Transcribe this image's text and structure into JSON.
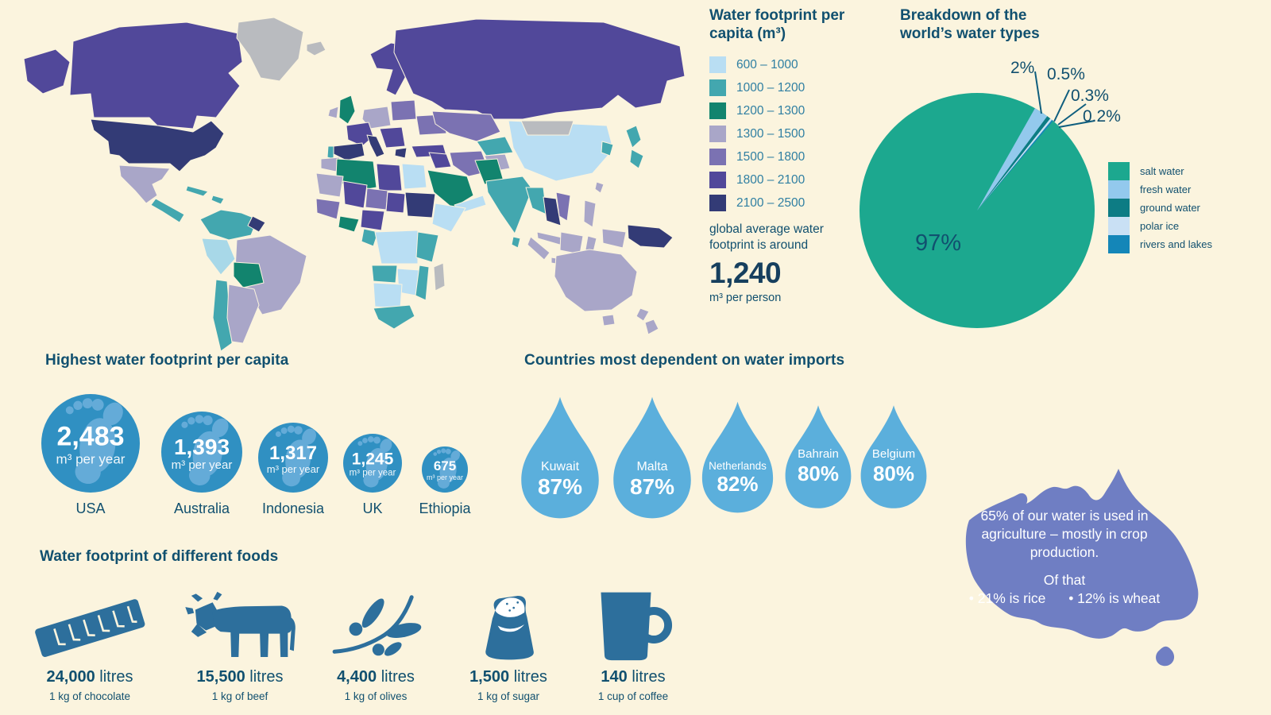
{
  "palette": {
    "background": "#FBF4DE",
    "ink": "#11506F",
    "legend_text": "#2F7FA2",
    "big_number": "#163F5E",
    "circle_fill": "#3090C2",
    "circle_footprint": "#64ABD8",
    "drop_fill": "#5BAFDC",
    "food_icon": "#2D6F9C",
    "australia_fill": "#6F7EC3",
    "leader_line": "#0F5E7E"
  },
  "chart_data": [
    {
      "type": "pie",
      "title": "Breakdown of the world’s water types",
      "start_angle_deg": 29.5,
      "legend_position": "right",
      "slices": [
        {
          "label": "salt water",
          "value": 97,
          "display": "97%",
          "color": "#1CA88F"
        },
        {
          "label": "fresh water",
          "value": 2,
          "display": "2%",
          "color": "#93C9ED"
        },
        {
          "label": "ground water",
          "value": 0.5,
          "display": "0.5%",
          "color": "#0D7C84"
        },
        {
          "label": "polar ice",
          "value": 0.3,
          "display": "0.3%",
          "color": "#C9E0F4"
        },
        {
          "label": "rivers and lakes",
          "value": 0.2,
          "display": "0.2%",
          "color": "#1486B8"
        }
      ]
    },
    {
      "type": "heatmap",
      "variant": "world-choropleth",
      "title": "Water footprint per capita (m³)",
      "bins": [
        {
          "range": "600 – 1000",
          "color": "#B9DEF3"
        },
        {
          "range": "1000 – 1200",
          "color": "#43A7AF"
        },
        {
          "range": "1200 – 1300",
          "color": "#12846E"
        },
        {
          "range": "1300 – 1500",
          "color": "#A9A6C8"
        },
        {
          "range": "1500 – 1800",
          "color": "#7B72B2"
        },
        {
          "range": "1800 – 2100",
          "color": "#51489A"
        },
        {
          "range": "2100 – 2500",
          "color": "#333B76"
        }
      ],
      "no_data_color": "#B9BBBF",
      "note": "global average water footprint is around",
      "average": "1,240",
      "average_unit": "m³ per person"
    },
    {
      "type": "bar",
      "variant": "footprint-circles",
      "title": "Highest water footprint per capita",
      "categories": [
        "USA",
        "Australia",
        "Indonesia",
        "UK",
        "Ethiopia"
      ],
      "values": [
        2483,
        1393,
        1317,
        1245,
        675
      ],
      "display_values": [
        "2,483",
        "1,393",
        "1,317",
        "1,245",
        "675"
      ],
      "unit": "m³ per year"
    },
    {
      "type": "bar",
      "variant": "water-drops",
      "title": "Countries most dependent on water imports",
      "categories": [
        "Kuwait",
        "Malta",
        "Netherlands",
        "Bahrain",
        "Belgium"
      ],
      "values": [
        87,
        87,
        82,
        80,
        80
      ],
      "display_values": [
        "87%",
        "87%",
        "82%",
        "80%",
        "80%"
      ]
    },
    {
      "type": "table",
      "variant": "food-pictograms",
      "title": "Water footprint of different foods",
      "rows": [
        {
          "icon": "chocolate-bar-icon",
          "amount": "24,000",
          "unit": "litres",
          "per": "1 kg of chocolate"
        },
        {
          "icon": "cow-icon",
          "amount": "15,500",
          "unit": "litres",
          "per": "1 kg of beef"
        },
        {
          "icon": "olive-branch-icon",
          "amount": "4,400",
          "unit": "litres",
          "per": "1 kg of olives"
        },
        {
          "icon": "sugar-sack-icon",
          "amount": "1,500",
          "unit": "litres",
          "per": "1 kg of sugar"
        },
        {
          "icon": "coffee-mug-icon",
          "amount": "140",
          "unit": "litres",
          "per": "1 cup of coffee"
        }
      ]
    }
  ],
  "australia_callout": {
    "text": "65% of our water is used in agriculture – mostly in crop production.",
    "of_that": "Of that",
    "rice": "• 21% is rice",
    "wheat": "• 12% is wheat"
  }
}
